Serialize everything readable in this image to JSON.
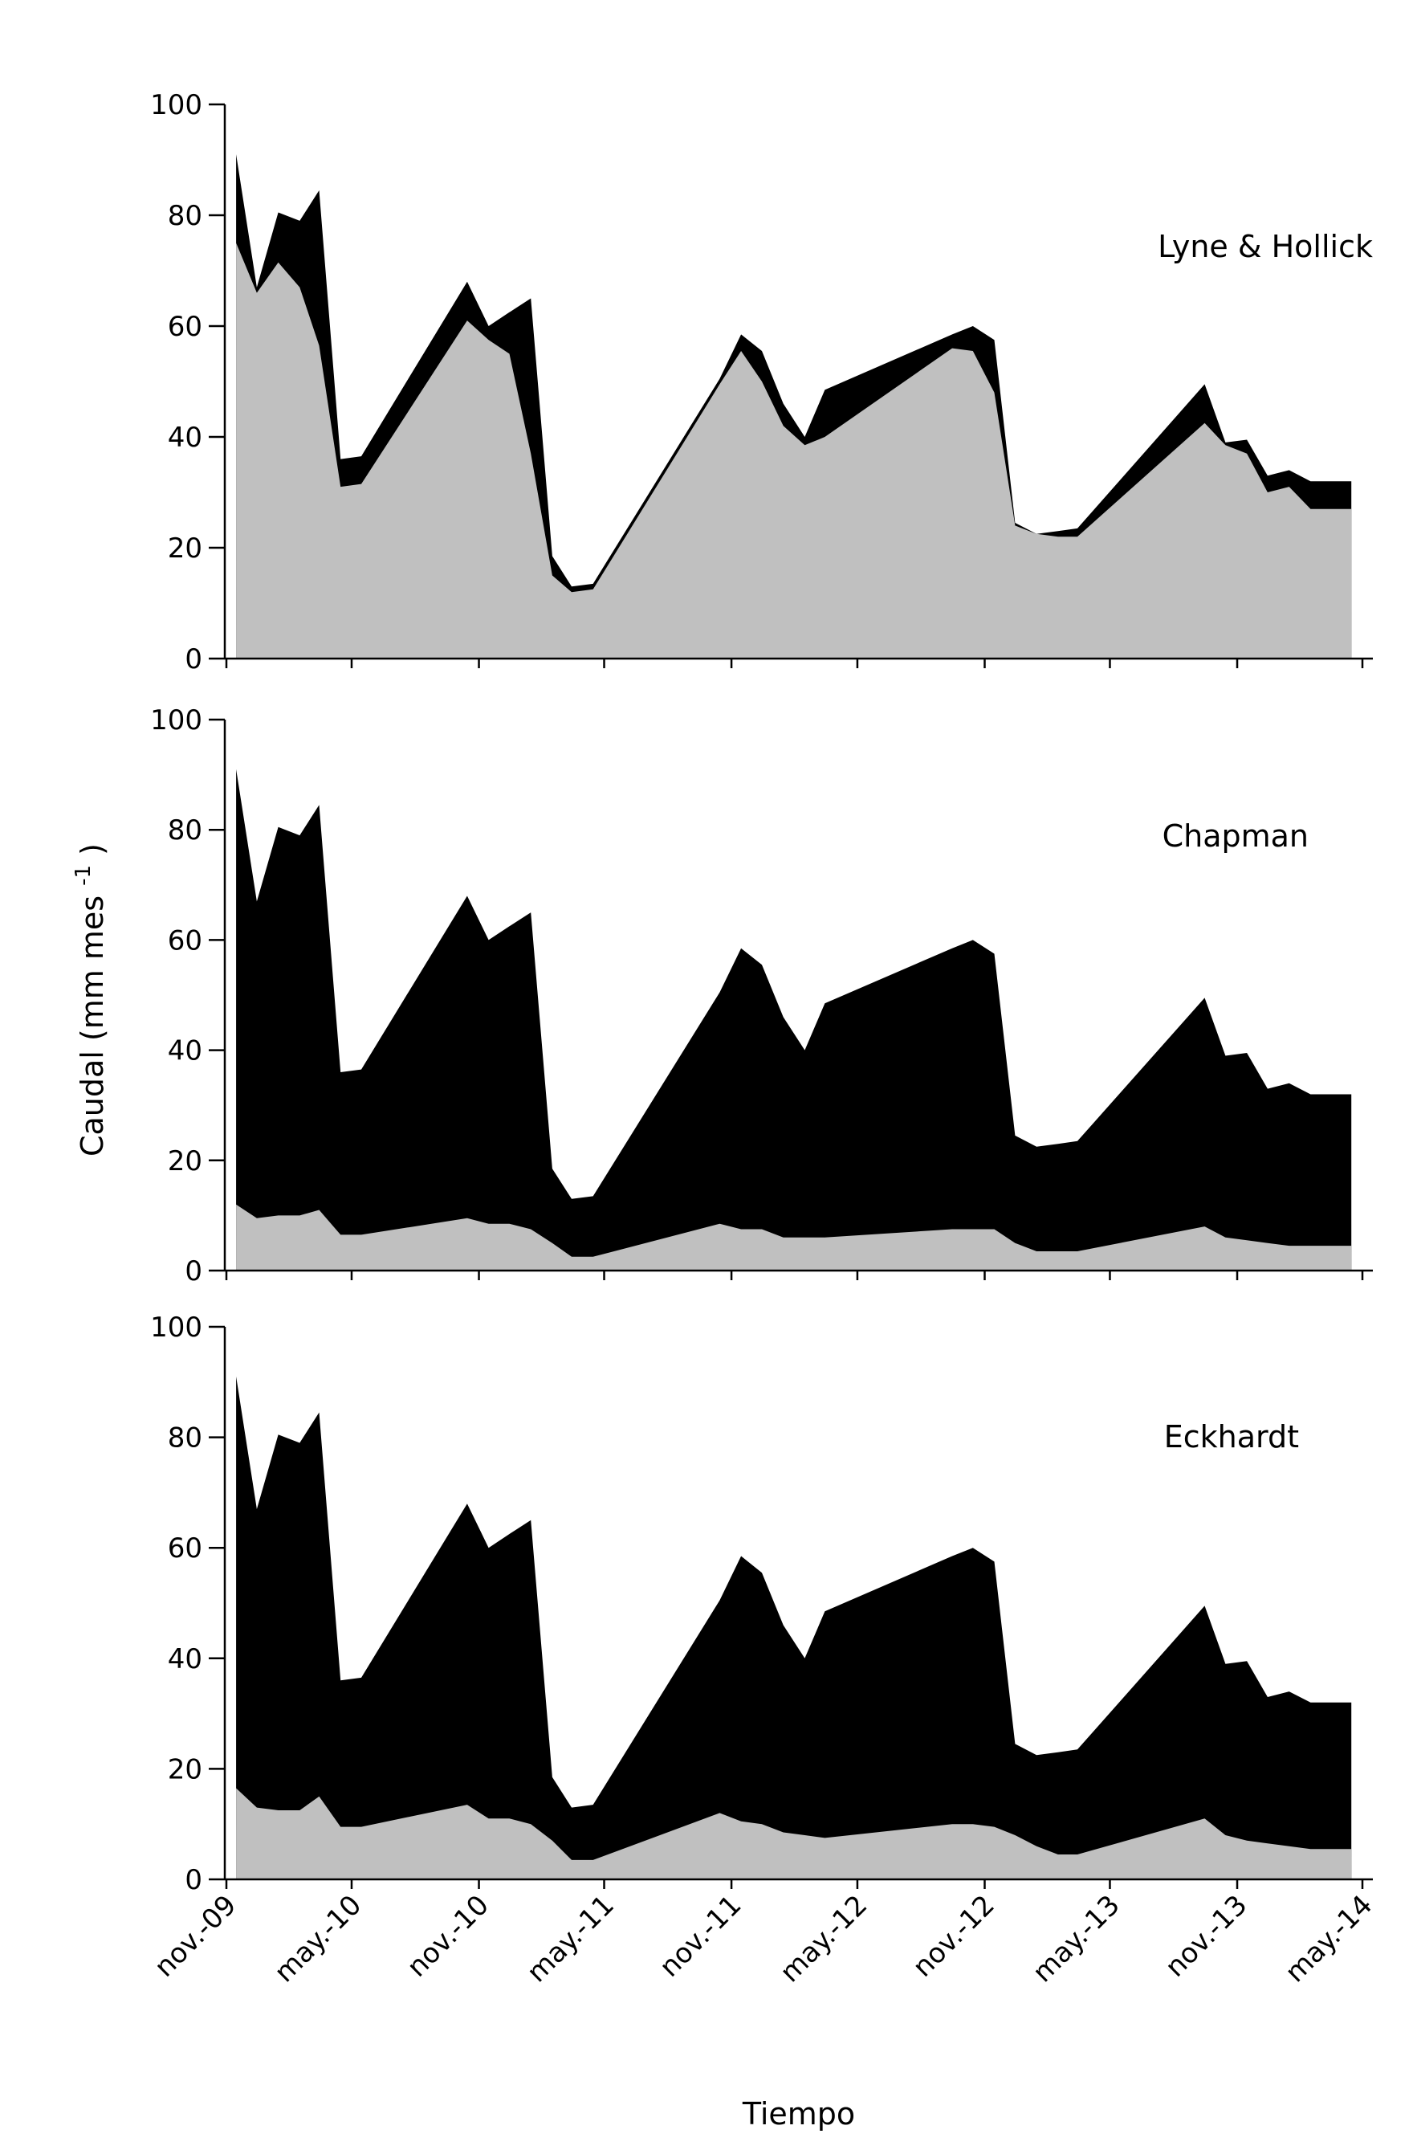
{
  "chart_data": {
    "type": "area",
    "shared_x": [
      "2009-11-15",
      "2009-12-15",
      "2010-01-15",
      "2010-02-15",
      "2010-03-15",
      "2010-04-15",
      "2010-05-15",
      "2010-10-15",
      "2010-11-15",
      "2010-12-15",
      "2011-01-15",
      "2011-02-15",
      "2011-03-15",
      "2011-04-15",
      "2011-10-15",
      "2011-11-15",
      "2011-12-15",
      "2012-01-15",
      "2012-02-15",
      "2012-03-15",
      "2012-09-15",
      "2012-10-15",
      "2012-11-15",
      "2012-12-15",
      "2013-01-15",
      "2013-02-15",
      "2013-03-15",
      "2013-09-15",
      "2013-10-15",
      "2013-11-15",
      "2013-12-15",
      "2014-01-15",
      "2014-02-15",
      "2014-03-15",
      "2014-04-15"
    ],
    "total_flow": [
      91,
      67,
      80.5,
      79,
      84.5,
      36,
      36.5,
      68,
      60,
      62.5,
      65,
      18.5,
      13,
      13.5,
      50.5,
      58.5,
      55.5,
      46,
      40,
      48.5,
      58.5,
      60,
      57.5,
      24.5,
      22.5,
      23,
      23.5,
      49.5,
      39,
      39.5,
      33,
      34,
      32,
      32,
      32
    ],
    "ylim": [
      0,
      100
    ],
    "yticks": [
      0,
      20,
      40,
      60,
      80,
      100
    ],
    "xtick_labels": [
      "nov.-09",
      "may.-10",
      "nov.-10",
      "may.-11",
      "nov.-11",
      "may.-12",
      "nov.-12",
      "may.-13",
      "nov.-13",
      "may.-14"
    ],
    "xtick_dates": [
      "2009-11-01",
      "2010-05-01",
      "2010-11-01",
      "2011-05-01",
      "2011-11-01",
      "2012-05-01",
      "2012-11-01",
      "2013-05-01",
      "2013-11-01",
      "2014-05-01"
    ],
    "xlabel": "Tiempo",
    "ylabel": "Caudal (mm mes",
    "ylabel_sup": "-1",
    "ylabel_close": ")",
    "colors": {
      "total": "#000000",
      "baseflow": "#c0c0c0"
    },
    "panels": [
      {
        "label": "Lyne & Hollick",
        "baseflow": [
          75,
          66,
          71.5,
          67,
          56.5,
          31,
          31.5,
          61,
          57.5,
          55,
          37,
          15,
          12,
          12.5,
          49.5,
          55.5,
          50,
          42,
          38.5,
          40,
          56,
          55.5,
          48,
          24,
          22.5,
          22,
          22,
          42.5,
          38.5,
          37,
          30,
          31,
          27,
          27,
          27
        ]
      },
      {
        "label": "Chapman",
        "baseflow": [
          12,
          9.5,
          10,
          10,
          11,
          6.5,
          6.5,
          9.5,
          8.5,
          8.5,
          7.5,
          5,
          2.5,
          2.5,
          8.5,
          7.5,
          7.5,
          6,
          6,
          6,
          7.5,
          7.5,
          7.5,
          5,
          3.5,
          3.5,
          3.5,
          8,
          6,
          5.5,
          5,
          4.5,
          4.5,
          4.5,
          4.5
        ]
      },
      {
        "label": "Eckhardt",
        "baseflow": [
          16.5,
          13,
          12.5,
          12.5,
          15,
          9.5,
          9.5,
          13.5,
          11,
          11,
          10,
          7,
          3.5,
          3.5,
          12,
          10.5,
          10,
          8.5,
          8,
          7.5,
          10,
          10,
          9.5,
          8,
          6,
          4.5,
          4.5,
          11,
          8,
          7,
          6.5,
          6,
          5.5,
          5.5,
          5.5
        ]
      }
    ]
  }
}
